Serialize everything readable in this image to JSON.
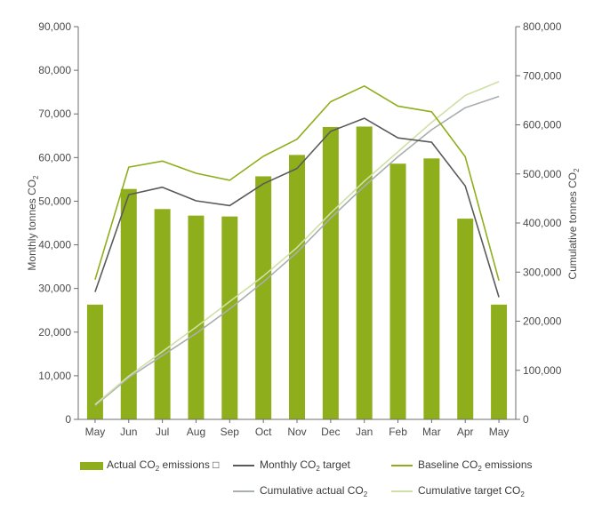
{
  "chart_data": {
    "type": "bar",
    "categories": [
      "May",
      "Jun",
      "Jul",
      "Aug",
      "Sep",
      "Oct",
      "Nov",
      "Dec",
      "Jan",
      "Feb",
      "Mar",
      "Apr",
      "May"
    ],
    "ylabel_left": {
      "main": "Monthly tonnes CO",
      "sub": "2"
    },
    "ylabel_right": {
      "main": "Cumulative tonnes CO",
      "sub": "2"
    },
    "ylim_left": [
      0,
      90000
    ],
    "ylim_right": [
      0,
      800000
    ],
    "yticks_left": [
      "0",
      "10,000",
      "20,000",
      "30,000",
      "40,000",
      "50,000",
      "60,000",
      "70,000",
      "80,000",
      "90,000"
    ],
    "yticks_right": [
      "0",
      "100,000",
      "200,000",
      "300,000",
      "400,000",
      "500,000",
      "600,000",
      "700,000",
      "800,000"
    ],
    "grid": false,
    "legend_placement": "bottom",
    "series": [
      {
        "name": "Actual CO2 emissions",
        "label_main": "Actual CO",
        "label_sub": "2",
        "label_tail": " emissions □",
        "type": "bar",
        "axis": "left",
        "color": "#8fae1b",
        "values": [
          26300,
          52800,
          48200,
          46700,
          46500,
          55700,
          60600,
          67000,
          67100,
          58600,
          59800,
          46000,
          26300
        ]
      },
      {
        "name": "Monthly CO2 target",
        "label_main": "Monthly CO",
        "label_sub": "2",
        "label_tail": " target",
        "type": "line",
        "axis": "left",
        "color": "#5a5a5a",
        "values": [
          29200,
          51500,
          53200,
          50100,
          49000,
          54000,
          57500,
          66000,
          69000,
          64500,
          63500,
          53500,
          28000
        ]
      },
      {
        "name": "Baseline CO2 emissions",
        "label_main": "Baseline CO",
        "label_sub": "2",
        "label_tail": " emissions",
        "type": "line",
        "axis": "left",
        "color": "#8fae1b",
        "values": [
          32000,
          57800,
          59200,
          56400,
          54800,
          60300,
          64200,
          72800,
          76400,
          71800,
          70500,
          60200,
          31800
        ]
      },
      {
        "name": "Cumulative actual CO2",
        "label_main": "Cumulative actual CO",
        "label_sub": "2",
        "label_tail": "",
        "type": "line",
        "axis": "right",
        "color": "#a9aeb1",
        "values": [
          28000,
          85000,
          130000,
          175000,
          225000,
          280000,
          340000,
          410000,
          475000,
          535000,
          590000,
          635000,
          658000
        ]
      },
      {
        "name": "Cumulative target CO2",
        "label_main": "Cumulative target CO",
        "label_sub": "2",
        "label_tail": "",
        "type": "line",
        "axis": "right",
        "color": "#cfe0a6",
        "values": [
          30000,
          88000,
          138000,
          188000,
          240000,
          292000,
          350000,
          420000,
          485000,
          545000,
          605000,
          660000,
          688000
        ]
      }
    ]
  }
}
